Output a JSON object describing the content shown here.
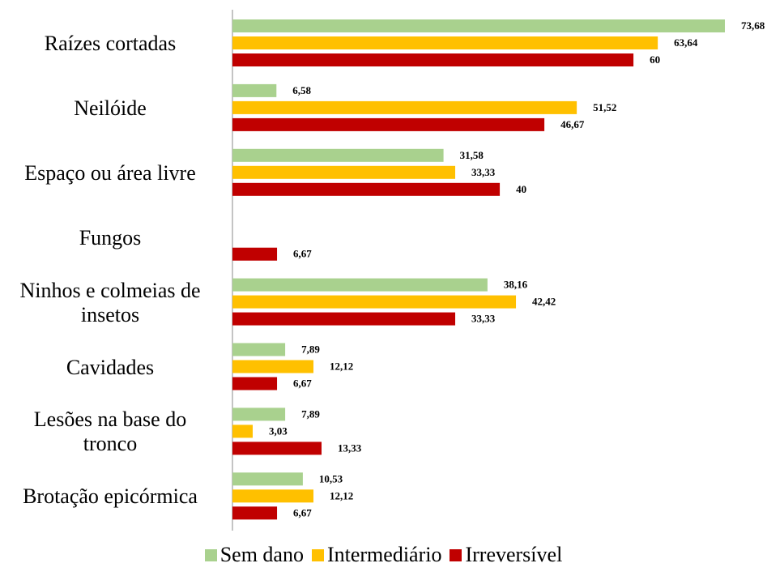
{
  "chart_data": {
    "type": "bar",
    "orientation": "horizontal",
    "categories": [
      "Raízes cortadas",
      "Neilóide",
      "Espaço ou área livre",
      "Fungos",
      "Ninhos e colmeias de insetos",
      "Cavidades",
      "Lesões na base do tronco",
      "Brotação epicórmica"
    ],
    "series": [
      {
        "name": "Sem dano",
        "color": "#a9d18e",
        "values": [
          73.68,
          6.58,
          31.58,
          null,
          38.16,
          7.89,
          7.89,
          10.53
        ],
        "value_labels": [
          "73,68",
          "6,58",
          "31,58",
          null,
          "38,16",
          "7,89",
          "7,89",
          "10,53"
        ]
      },
      {
        "name": "Intermediário",
        "color": "#ffc000",
        "values": [
          63.64,
          51.52,
          33.33,
          null,
          42.42,
          12.12,
          3.03,
          12.12
        ],
        "value_labels": [
          "63,64",
          "51,52",
          "33,33",
          null,
          "42,42",
          "12,12",
          "3,03",
          "12,12"
        ]
      },
      {
        "name": "Irreversível",
        "color": "#c00000",
        "values": [
          60,
          46.67,
          40,
          6.67,
          33.33,
          6.67,
          13.33,
          6.67
        ],
        "value_labels": [
          "60",
          "46,67",
          "40",
          "6,67",
          "33,33",
          "6,67",
          "13,33",
          "6,67"
        ]
      }
    ],
    "legend": "bottom"
  }
}
